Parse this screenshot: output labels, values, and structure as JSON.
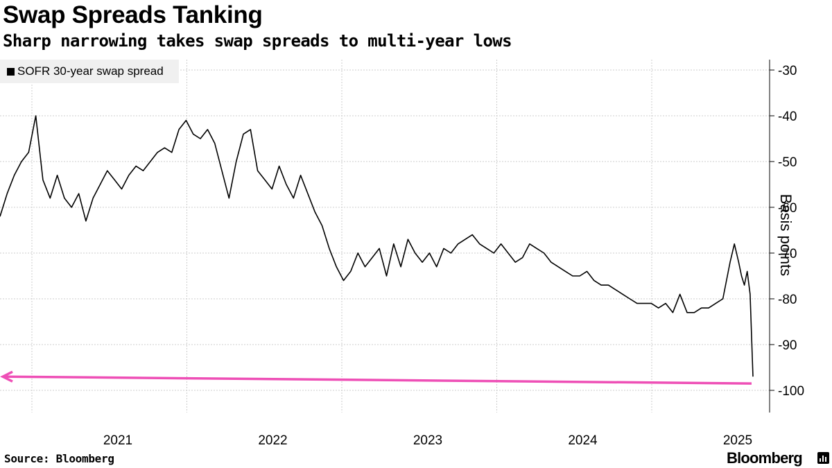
{
  "header": {
    "title": "Swap Spreads Tanking",
    "subtitle": "Sharp narrowing takes swap spreads to multi-year lows"
  },
  "footer": {
    "source": "Source: Bloomberg",
    "brand": "Bloomberg",
    "brand_icon": "bar-chart-icon"
  },
  "colors": {
    "line": "#000000",
    "annotation_arrow": "#ee4fb6",
    "grid": "#cccccc",
    "legend_bg": "#f0f0f0"
  },
  "chart_data": {
    "type": "line",
    "title": "Swap Spreads Tanking",
    "subtitle": "Sharp narrowing takes swap spreads to multi-year lows",
    "ylabel": "Basis points",
    "xlabel": "",
    "y_axis_position": "right",
    "ylim": [
      -105,
      -26
    ],
    "xlim": [
      2020.0,
      2025.3
    ],
    "yticks": [
      -30,
      -40,
      -50,
      -60,
      -70,
      -80,
      -90,
      -100
    ],
    "xticks": [
      "2021",
      "2022",
      "2023",
      "2024",
      "2025"
    ],
    "xtick_values": [
      2021,
      2022,
      2023,
      2024,
      2025
    ],
    "grid": true,
    "legend": {
      "position": "top-left",
      "entries": [
        "SOFR 30-year swap spread"
      ]
    },
    "series": [
      {
        "name": "SOFR 30-year swap spread",
        "x": [
          2020.0,
          2020.05,
          2020.1,
          2020.15,
          2020.2,
          2020.25,
          2020.3,
          2020.35,
          2020.4,
          2020.45,
          2020.5,
          2020.55,
          2020.6,
          2020.65,
          2020.7,
          2020.75,
          2020.8,
          2020.85,
          2020.9,
          2020.95,
          2021.0,
          2021.05,
          2021.1,
          2021.15,
          2021.2,
          2021.25,
          2021.3,
          2021.35,
          2021.4,
          2021.45,
          2021.5,
          2021.55,
          2021.6,
          2021.65,
          2021.7,
          2021.75,
          2021.8,
          2021.85,
          2021.9,
          2021.95,
          2022.0,
          2022.05,
          2022.1,
          2022.15,
          2022.2,
          2022.25,
          2022.3,
          2022.35,
          2022.4,
          2022.45,
          2022.5,
          2022.55,
          2022.6,
          2022.65,
          2022.7,
          2022.75,
          2022.8,
          2022.85,
          2022.9,
          2022.95,
          2023.0,
          2023.05,
          2023.1,
          2023.15,
          2023.2,
          2023.25,
          2023.3,
          2023.35,
          2023.4,
          2023.45,
          2023.5,
          2023.55,
          2023.6,
          2023.65,
          2023.7,
          2023.75,
          2023.8,
          2023.85,
          2023.9,
          2023.95,
          2024.0,
          2024.05,
          2024.1,
          2024.15,
          2024.2,
          2024.25,
          2024.3,
          2024.35,
          2024.4,
          2024.45,
          2024.5,
          2024.55,
          2024.6,
          2024.65,
          2024.7,
          2024.75,
          2024.8,
          2024.85,
          2024.9,
          2024.95,
          2025.0,
          2025.05,
          2025.1,
          2025.13,
          2025.16,
          2025.18,
          2025.2,
          2025.22,
          2025.24,
          2025.26
        ],
        "values": [
          -62,
          -57,
          -53,
          -50,
          -48,
          -40,
          -54,
          -58,
          -53,
          -58,
          -60,
          -57,
          -63,
          -58,
          -55,
          -52,
          -54,
          -56,
          -53,
          -51,
          -52,
          -50,
          -48,
          -47,
          -48,
          -43,
          -41,
          -44,
          -45,
          -43,
          -46,
          -52,
          -58,
          -50,
          -44,
          -43,
          -52,
          -54,
          -56,
          -51,
          -55,
          -58,
          -53,
          -57,
          -61,
          -64,
          -69,
          -73,
          -76,
          -74,
          -70,
          -73,
          -71,
          -69,
          -75,
          -68,
          -73,
          -67,
          -70,
          -72,
          -70,
          -73,
          -69,
          -70,
          -68,
          -67,
          -66,
          -68,
          -69,
          -70,
          -68,
          -70,
          -72,
          -71,
          -68,
          -69,
          -70,
          -72,
          -73,
          -74,
          -75,
          -75,
          -74,
          -76,
          -77,
          -77,
          -78,
          -79,
          -80,
          -81,
          -81,
          -81,
          -82,
          -81,
          -83,
          -79,
          -83,
          -83,
          -82,
          -82,
          -81,
          -80,
          -72,
          -68,
          -72,
          -75,
          -77,
          -74,
          -79,
          -97
        ]
      }
    ],
    "annotations": [
      {
        "type": "arrow",
        "direction": "left",
        "color": "#ee4fb6",
        "y_start": -98.5,
        "y_end": -97
      }
    ]
  }
}
